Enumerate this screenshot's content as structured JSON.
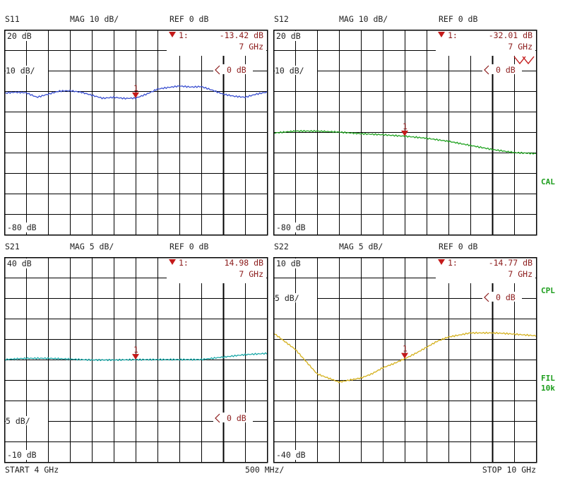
{
  "chart_data": [
    {
      "type": "line",
      "param": "S11",
      "scale_label": "MAG 10 dB/",
      "ref_label": "REF 0 dB",
      "top_label": "20 dB",
      "ref_level_label": "10 dB/",
      "bottom_label": "-80 dB",
      "marker": {
        "id": "1",
        "label": "1:",
        "value_text": "-13.42 dB",
        "freq_text": "7 GHz",
        "x": 7,
        "y": -13.42
      },
      "ref_marker_text": "0 dB",
      "ylim": [
        -80,
        20
      ],
      "ref_line_y": 0,
      "color": "#3a4fd0",
      "series": [
        {
          "x": [
            4,
            4.25,
            4.5,
            4.75,
            5,
            5.25,
            5.5,
            5.75,
            6,
            6.25,
            6.5,
            6.75,
            7,
            7.25,
            7.5,
            7.75,
            8,
            8.25,
            8.5,
            8.75,
            9,
            9.25,
            9.5,
            9.75,
            10
          ],
          "values": [
            -11,
            -10.5,
            -10.8,
            -13,
            -11.5,
            -10,
            -9.8,
            -10.5,
            -12,
            -13.5,
            -13,
            -13.6,
            -13.4,
            -11.5,
            -9,
            -8.2,
            -7.5,
            -8,
            -7.8,
            -9.5,
            -11.5,
            -12.5,
            -13,
            -11.5,
            -10.5
          ]
        }
      ]
    },
    {
      "type": "line",
      "param": "S12",
      "scale_label": "MAG 10 dB/",
      "ref_label": "REF 0 dB",
      "top_label": "20 dB",
      "ref_level_label": "10 dB/",
      "bottom_label": "-80 dB",
      "marker": {
        "id": "1",
        "label": "1:",
        "value_text": "-32.01 dB",
        "freq_text": "7 GHz",
        "x": 7,
        "y": -32.01
      },
      "ref_marker_text": "0 dB",
      "ylim": [
        -80,
        20
      ],
      "ref_line_y": 0,
      "color": "#22a322",
      "series": [
        {
          "x": [
            4,
            4.5,
            5,
            5.5,
            6,
            6.5,
            7,
            7.5,
            8,
            8.5,
            9,
            9.5,
            10
          ],
          "values": [
            -30.5,
            -29.5,
            -29.5,
            -30,
            -30.8,
            -31.3,
            -32,
            -33,
            -34.5,
            -36.5,
            -38.5,
            -40,
            -40.5
          ]
        }
      ]
    },
    {
      "type": "line",
      "param": "S21",
      "scale_label": "MAG 5 dB/",
      "ref_label": "REF 0 dB",
      "top_label": "40 dB",
      "ref_level_label": "5 dB/",
      "bottom_label": "-10 dB",
      "marker": {
        "id": "1",
        "label": "1:",
        "value_text": "14.98 dB",
        "freq_text": "7 GHz",
        "x": 7,
        "y": 14.98
      },
      "ref_marker_text": "0 dB",
      "ylim": [
        -10,
        40
      ],
      "ref_line_y": 0,
      "color": "#1aa8a8",
      "series": [
        {
          "x": [
            4,
            4.5,
            5,
            5.5,
            6,
            6.5,
            7,
            7.5,
            8,
            8.5,
            9,
            9.5,
            10
          ],
          "values": [
            15,
            15.3,
            15.3,
            15.1,
            14.9,
            14.9,
            14.98,
            15,
            15,
            15,
            15.6,
            16.2,
            16.5
          ]
        }
      ]
    },
    {
      "type": "line",
      "param": "S22",
      "scale_label": "MAG 5 dB/",
      "ref_label": "REF 0 dB",
      "top_label": "10 dB",
      "ref_level_label": "5 dB/",
      "bottom_label": "-40 dB",
      "marker": {
        "id": "1",
        "label": "1:",
        "value_text": "-14.77 dB",
        "freq_text": "7 GHz",
        "x": 7,
        "y": -14.77
      },
      "ref_marker_text": "0 dB",
      "ylim": [
        -40,
        10
      ],
      "ref_line_y": 0,
      "color": "#d4b01c",
      "series": [
        {
          "x": [
            4,
            4.25,
            4.5,
            4.75,
            5,
            5.25,
            5.5,
            5.75,
            6,
            6.25,
            6.5,
            6.75,
            7,
            7.25,
            7.5,
            7.75,
            8,
            8.25,
            8.5,
            8.75,
            9,
            9.25,
            9.5,
            9.75,
            10
          ],
          "values": [
            -8.5,
            -10.5,
            -12.5,
            -15.5,
            -18.5,
            -19.5,
            -20.5,
            -20,
            -19.5,
            -18.5,
            -17,
            -16,
            -14.8,
            -13.5,
            -12,
            -10.5,
            -9.5,
            -9,
            -8.5,
            -8.5,
            -8.5,
            -8.6,
            -8.8,
            -9,
            -9.2
          ]
        }
      ]
    }
  ],
  "side_labels": {
    "cal": "CAL",
    "cpl": "CPL",
    "fil": "FIL",
    "fil_bw": "10k"
  },
  "footer": {
    "start": "START  4 GHz",
    "span": "500 MHz/",
    "stop": "STOP 10 GHz"
  },
  "x_axis": {
    "start_ghz": 4,
    "stop_ghz": 10
  }
}
